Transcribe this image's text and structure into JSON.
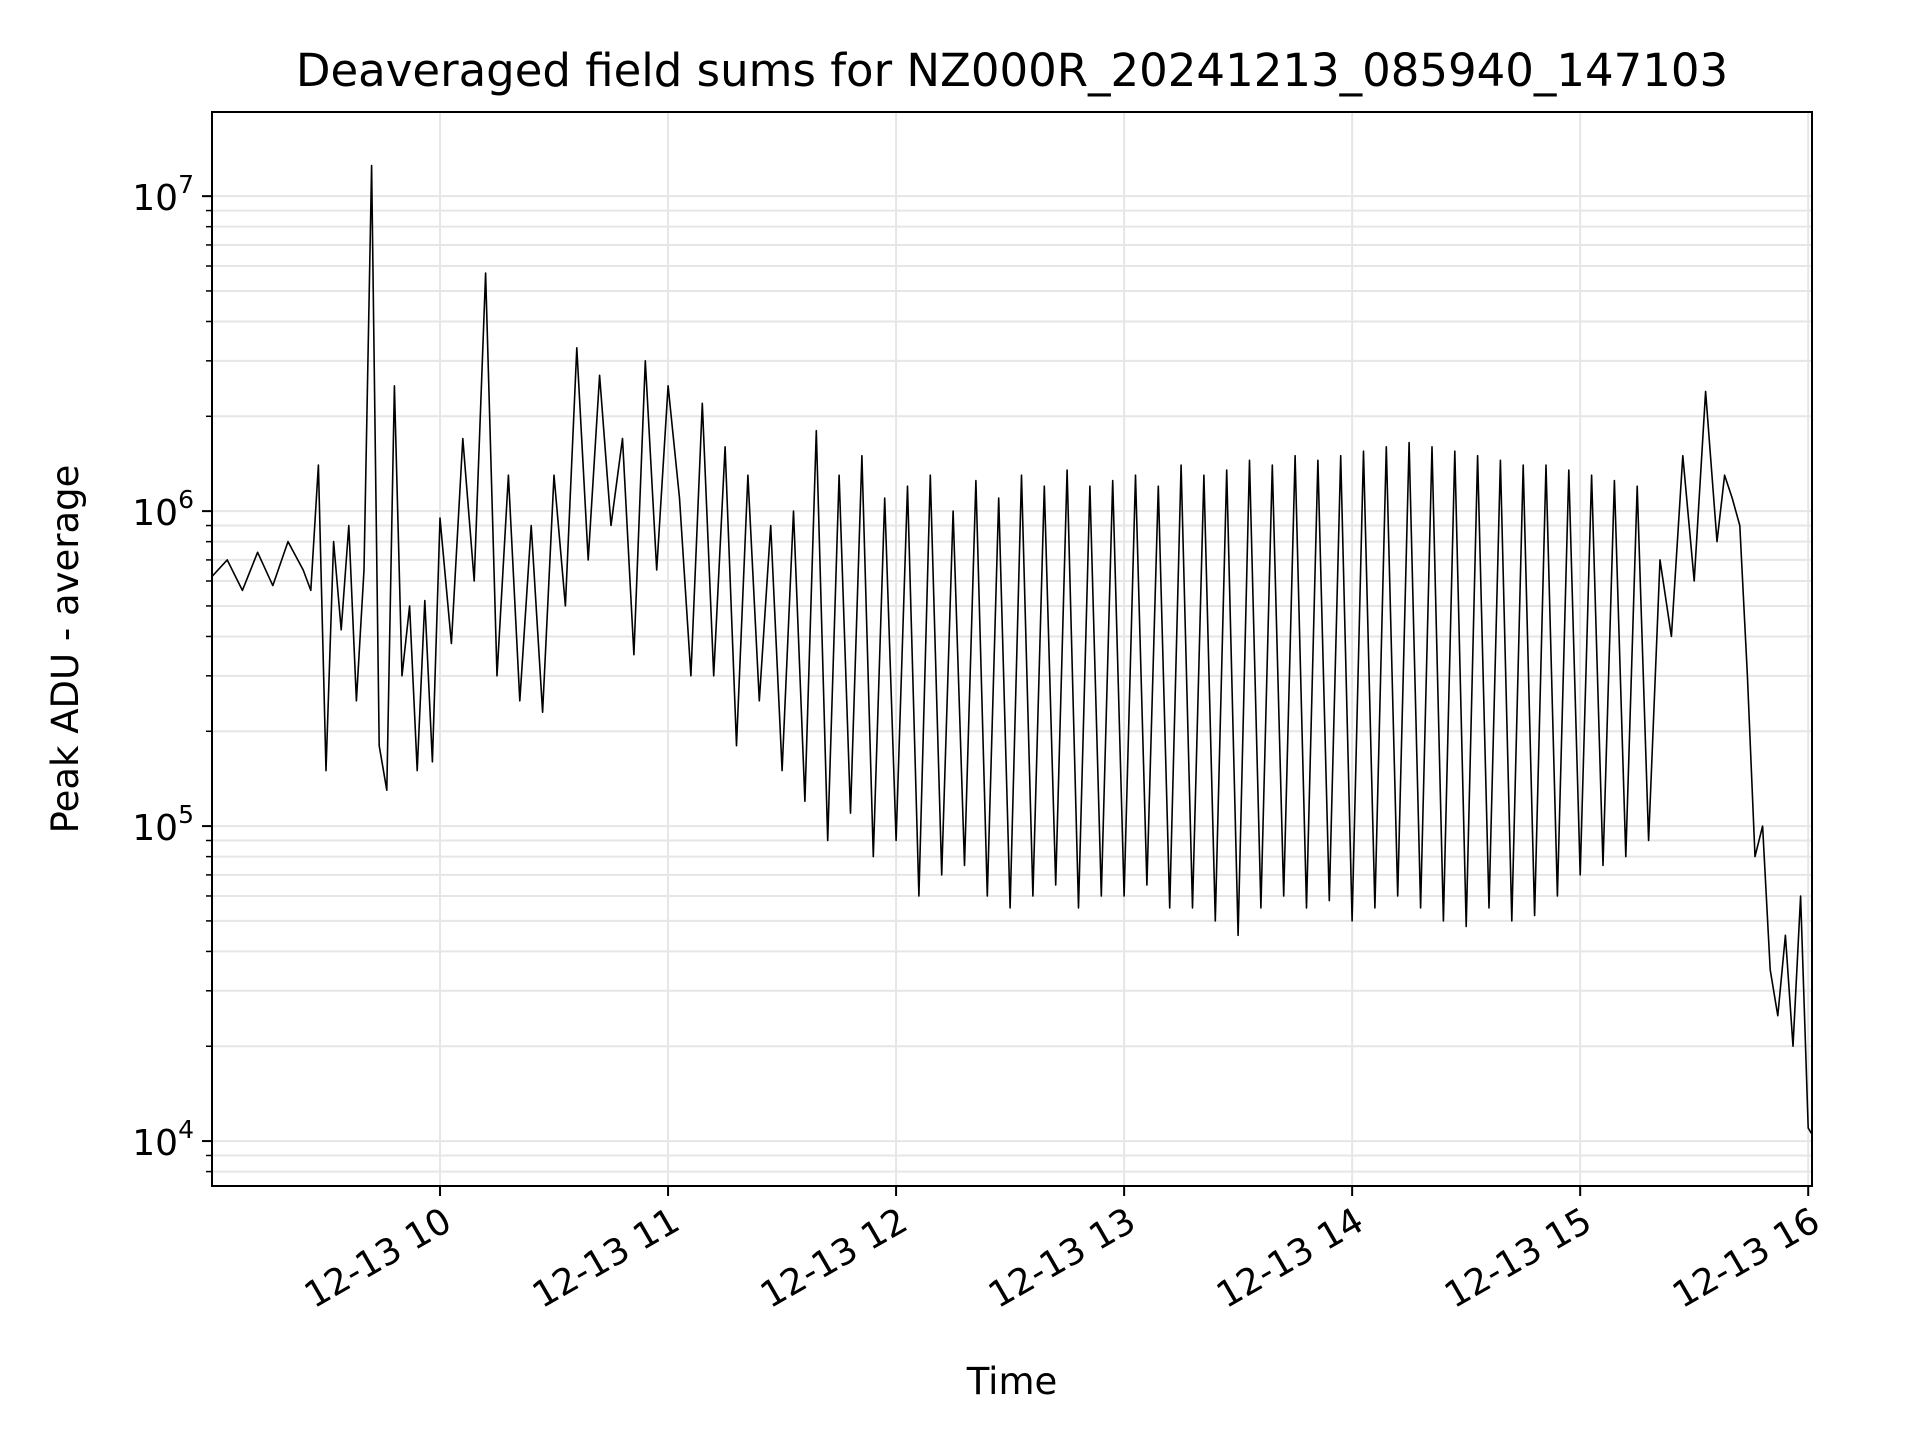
{
  "chart_data": {
    "type": "line",
    "title": "Deaveraged field sums for NZ000R_20241213_085940_147103",
    "xlabel": "Time",
    "ylabel": "Peak ADU - average",
    "x_scale": "time",
    "y_scale": "log",
    "xlim": [
      "2024-12-13T09:00:00",
      "2024-12-13T16:01:00"
    ],
    "ylim": [
      7200,
      18500000
    ],
    "grid": true,
    "x_ticks": [
      {
        "value": "2024-12-13T10:00:00",
        "label": "12-13 10"
      },
      {
        "value": "2024-12-13T11:00:00",
        "label": "12-13 11"
      },
      {
        "value": "2024-12-13T12:00:00",
        "label": "12-13 12"
      },
      {
        "value": "2024-12-13T13:00:00",
        "label": "12-13 13"
      },
      {
        "value": "2024-12-13T14:00:00",
        "label": "12-13 14"
      },
      {
        "value": "2024-12-13T15:00:00",
        "label": "12-13 15"
      },
      {
        "value": "2024-12-13T16:00:00",
        "label": "12-13 16"
      }
    ],
    "y_ticks": [
      {
        "value": 10000,
        "base": "10",
        "exp": "4"
      },
      {
        "value": 100000,
        "base": "10",
        "exp": "5"
      },
      {
        "value": 1000000,
        "base": "10",
        "exp": "6"
      },
      {
        "value": 10000000,
        "base": "10",
        "exp": "7"
      }
    ],
    "series": [
      {
        "color": "#000000",
        "x": [
          "2024-12-13T09:00:00",
          "2024-12-13T09:04:00",
          "2024-12-13T09:08:00",
          "2024-12-13T09:12:00",
          "2024-12-13T09:16:00",
          "2024-12-13T09:20:00",
          "2024-12-13T09:24:00",
          "2024-12-13T09:26:00",
          "2024-12-13T09:28:00",
          "2024-12-13T09:30:00",
          "2024-12-13T09:32:00",
          "2024-12-13T09:34:00",
          "2024-12-13T09:36:00",
          "2024-12-13T09:38:00",
          "2024-12-13T09:40:00",
          "2024-12-13T09:42:00",
          "2024-12-13T09:44:00",
          "2024-12-13T09:46:00",
          "2024-12-13T09:48:00",
          "2024-12-13T09:50:00",
          "2024-12-13T09:52:00",
          "2024-12-13T09:54:00",
          "2024-12-13T09:56:00",
          "2024-12-13T09:58:00",
          "2024-12-13T10:00:00",
          "2024-12-13T10:03:00",
          "2024-12-13T10:06:00",
          "2024-12-13T10:09:00",
          "2024-12-13T10:12:00",
          "2024-12-13T10:15:00",
          "2024-12-13T10:18:00",
          "2024-12-13T10:21:00",
          "2024-12-13T10:24:00",
          "2024-12-13T10:27:00",
          "2024-12-13T10:30:00",
          "2024-12-13T10:33:00",
          "2024-12-13T10:36:00",
          "2024-12-13T10:39:00",
          "2024-12-13T10:42:00",
          "2024-12-13T10:45:00",
          "2024-12-13T10:48:00",
          "2024-12-13T10:51:00",
          "2024-12-13T10:54:00",
          "2024-12-13T10:57:00",
          "2024-12-13T11:00:00",
          "2024-12-13T11:03:00",
          "2024-12-13T11:06:00",
          "2024-12-13T11:09:00",
          "2024-12-13T11:12:00",
          "2024-12-13T11:15:00",
          "2024-12-13T11:18:00",
          "2024-12-13T11:21:00",
          "2024-12-13T11:24:00",
          "2024-12-13T11:27:00",
          "2024-12-13T11:30:00",
          "2024-12-13T11:33:00",
          "2024-12-13T11:36:00",
          "2024-12-13T11:39:00",
          "2024-12-13T11:42:00",
          "2024-12-13T11:45:00",
          "2024-12-13T11:48:00",
          "2024-12-13T11:51:00",
          "2024-12-13T11:54:00",
          "2024-12-13T11:57:00",
          "2024-12-13T12:00:00",
          "2024-12-13T12:03:00",
          "2024-12-13T12:06:00",
          "2024-12-13T12:09:00",
          "2024-12-13T12:12:00",
          "2024-12-13T12:15:00",
          "2024-12-13T12:18:00",
          "2024-12-13T12:21:00",
          "2024-12-13T12:24:00",
          "2024-12-13T12:27:00",
          "2024-12-13T12:30:00",
          "2024-12-13T12:33:00",
          "2024-12-13T12:36:00",
          "2024-12-13T12:39:00",
          "2024-12-13T12:42:00",
          "2024-12-13T12:45:00",
          "2024-12-13T12:48:00",
          "2024-12-13T12:51:00",
          "2024-12-13T12:54:00",
          "2024-12-13T12:57:00",
          "2024-12-13T13:00:00",
          "2024-12-13T13:03:00",
          "2024-12-13T13:06:00",
          "2024-12-13T13:09:00",
          "2024-12-13T13:12:00",
          "2024-12-13T13:15:00",
          "2024-12-13T13:18:00",
          "2024-12-13T13:21:00",
          "2024-12-13T13:24:00",
          "2024-12-13T13:27:00",
          "2024-12-13T13:30:00",
          "2024-12-13T13:33:00",
          "2024-12-13T13:36:00",
          "2024-12-13T13:39:00",
          "2024-12-13T13:42:00",
          "2024-12-13T13:45:00",
          "2024-12-13T13:48:00",
          "2024-12-13T13:51:00",
          "2024-12-13T13:54:00",
          "2024-12-13T13:57:00",
          "2024-12-13T14:00:00",
          "2024-12-13T14:03:00",
          "2024-12-13T14:06:00",
          "2024-12-13T14:09:00",
          "2024-12-13T14:12:00",
          "2024-12-13T14:15:00",
          "2024-12-13T14:18:00",
          "2024-12-13T14:21:00",
          "2024-12-13T14:24:00",
          "2024-12-13T14:27:00",
          "2024-12-13T14:30:00",
          "2024-12-13T14:33:00",
          "2024-12-13T14:36:00",
          "2024-12-13T14:39:00",
          "2024-12-13T14:42:00",
          "2024-12-13T14:45:00",
          "2024-12-13T14:48:00",
          "2024-12-13T14:51:00",
          "2024-12-13T14:54:00",
          "2024-12-13T14:57:00",
          "2024-12-13T15:00:00",
          "2024-12-13T15:03:00",
          "2024-12-13T15:06:00",
          "2024-12-13T15:09:00",
          "2024-12-13T15:12:00",
          "2024-12-13T15:15:00",
          "2024-12-13T15:18:00",
          "2024-12-13T15:21:00",
          "2024-12-13T15:24:00",
          "2024-12-13T15:27:00",
          "2024-12-13T15:30:00",
          "2024-12-13T15:33:00",
          "2024-12-13T15:36:00",
          "2024-12-13T15:38:00",
          "2024-12-13T15:40:00",
          "2024-12-13T15:42:00",
          "2024-12-13T15:44:00",
          "2024-12-13T15:46:00",
          "2024-12-13T15:48:00",
          "2024-12-13T15:50:00",
          "2024-12-13T15:52:00",
          "2024-12-13T15:54:00",
          "2024-12-13T15:56:00",
          "2024-12-13T15:58:00",
          "2024-12-13T16:00:00",
          "2024-12-13T16:01:00"
        ],
        "values": [
          620000,
          700000,
          560000,
          740000,
          580000,
          800000,
          650000,
          560000,
          1400000,
          150000,
          800000,
          420000,
          900000,
          250000,
          650000,
          12500000,
          180000,
          130000,
          2500000,
          300000,
          500000,
          150000,
          520000,
          160000,
          950000,
          380000,
          1700000,
          600000,
          5700000,
          300000,
          1300000,
          250000,
          900000,
          230000,
          1300000,
          500000,
          3300000,
          700000,
          2700000,
          900000,
          1700000,
          350000,
          3000000,
          650000,
          2500000,
          1100000,
          300000,
          2200000,
          300000,
          1600000,
          180000,
          1300000,
          250000,
          900000,
          150000,
          1000000,
          120000,
          1800000,
          90000,
          1300000,
          110000,
          1500000,
          80000,
          1100000,
          90000,
          1200000,
          60000,
          1300000,
          70000,
          1000000,
          75000,
          1250000,
          60000,
          1100000,
          55000,
          1300000,
          60000,
          1200000,
          65000,
          1350000,
          55000,
          1200000,
          60000,
          1250000,
          60000,
          1300000,
          65000,
          1200000,
          55000,
          1400000,
          55000,
          1300000,
          50000,
          1350000,
          45000,
          1450000,
          55000,
          1400000,
          60000,
          1500000,
          55000,
          1450000,
          58000,
          1500000,
          50000,
          1550000,
          55000,
          1600000,
          60000,
          1650000,
          55000,
          1600000,
          50000,
          1550000,
          48000,
          1500000,
          55000,
          1450000,
          50000,
          1400000,
          52000,
          1400000,
          60000,
          1350000,
          70000,
          1300000,
          75000,
          1250000,
          80000,
          1200000,
          90000,
          700000,
          400000,
          1500000,
          600000,
          2400000,
          800000,
          1300000,
          1100000,
          900000,
          300000,
          80000,
          100000,
          35000,
          25000,
          45000,
          20000,
          60000,
          11000,
          10500
        ]
      }
    ]
  }
}
